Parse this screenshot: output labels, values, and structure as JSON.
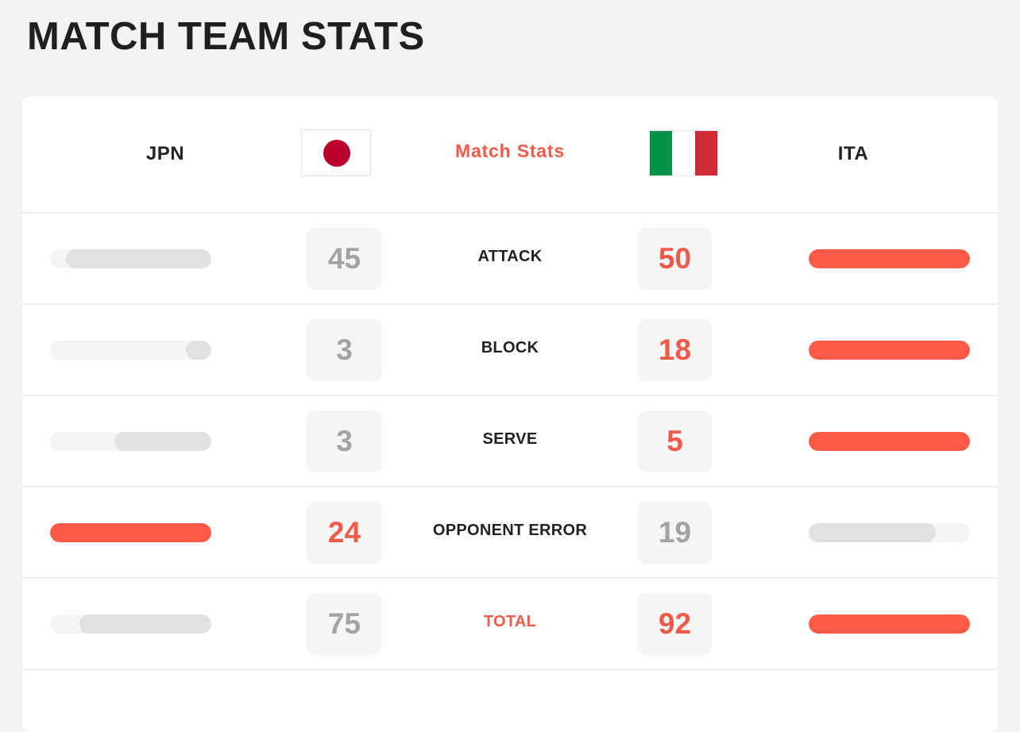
{
  "page": {
    "title": "MATCH TEAM STATS"
  },
  "header": {
    "left_team": "JPN",
    "right_team": "ITA",
    "center_label": "Match Stats"
  },
  "icons": {
    "left_flag": "japan-flag-icon",
    "right_flag": "italy-flag-icon"
  },
  "colors": {
    "accent": "#f05a4a",
    "bar_win": "#ff5a47",
    "bar_lose": "#e1e1e1",
    "japan_red": "#bc002d",
    "italy_green": "#009246",
    "italy_red": "#ce2b37"
  },
  "stats": [
    {
      "label": "ATTACK",
      "left": "45",
      "right": "50",
      "left_share": 0.9,
      "right_share": 1.0,
      "winner": "right"
    },
    {
      "label": "BLOCK",
      "left": "3",
      "right": "18",
      "left_share": 0.16,
      "right_share": 1.0,
      "winner": "right"
    },
    {
      "label": "SERVE",
      "left": "3",
      "right": "5",
      "left_share": 0.6,
      "right_share": 1.0,
      "winner": "right"
    },
    {
      "label": "OPPONENT ERROR",
      "left": "24",
      "right": "19",
      "left_share": 1.0,
      "right_share": 0.79,
      "winner": "left"
    },
    {
      "label": "TOTAL",
      "left": "75",
      "right": "92",
      "left_share": 0.82,
      "right_share": 1.0,
      "winner": "right",
      "accent": true
    }
  ]
}
